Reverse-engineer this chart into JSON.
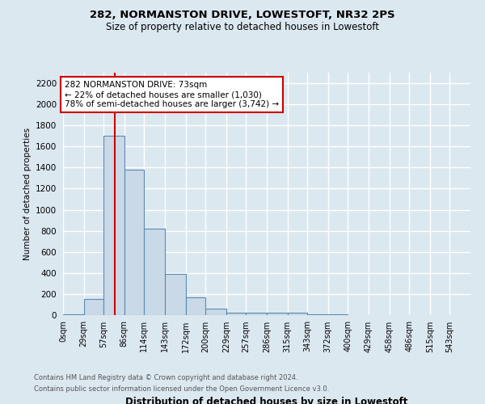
{
  "title1": "282, NORMANSTON DRIVE, LOWESTOFT, NR32 2PS",
  "title2": "Size of property relative to detached houses in Lowestoft",
  "xlabel": "Distribution of detached houses by size in Lowestoft",
  "ylabel": "Number of detached properties",
  "bar_edges": [
    0,
    29,
    57,
    86,
    114,
    143,
    172,
    200,
    229,
    257,
    286,
    315,
    343,
    372,
    400,
    429,
    458,
    486,
    515,
    543,
    572
  ],
  "bar_heights": [
    10,
    155,
    1700,
    1380,
    820,
    390,
    165,
    65,
    25,
    20,
    20,
    20,
    10,
    5,
    2,
    1,
    0,
    0,
    0,
    0
  ],
  "bar_color": "#c9d9e8",
  "bar_edge_color": "#5a8ab0",
  "property_size": 73,
  "vline_color": "#cc0000",
  "annotation_text": "282 NORMANSTON DRIVE: 73sqm\n← 22% of detached houses are smaller (1,030)\n78% of semi-detached houses are larger (3,742) →",
  "annotation_box_color": "#cc0000",
  "ylim": [
    0,
    2300
  ],
  "yticks": [
    0,
    200,
    400,
    600,
    800,
    1000,
    1200,
    1400,
    1600,
    1800,
    2000,
    2200
  ],
  "footnote1": "Contains HM Land Registry data © Crown copyright and database right 2024.",
  "footnote2": "Contains public sector information licensed under the Open Government Licence v3.0.",
  "background_color": "#dce8f0",
  "grid_color": "#ffffff"
}
